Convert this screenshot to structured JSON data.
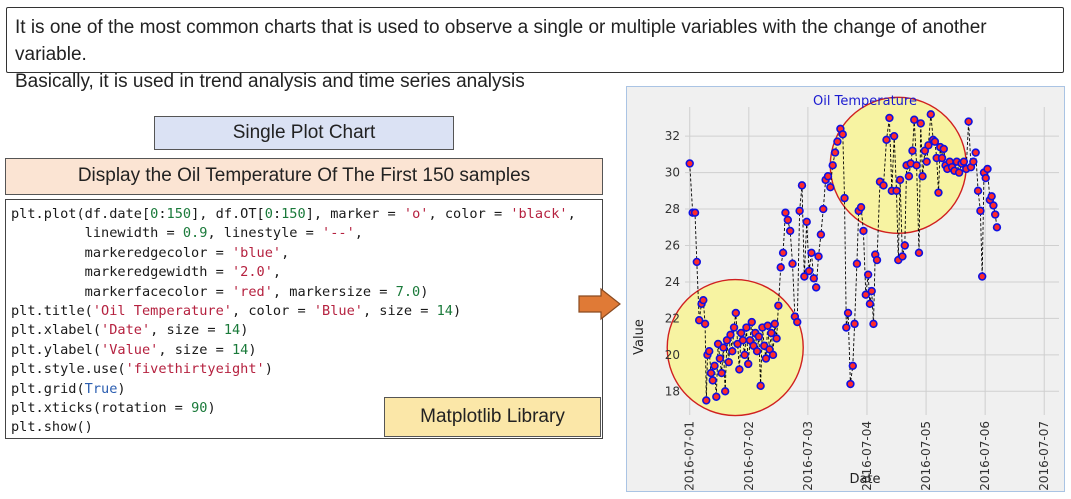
{
  "description": {
    "line1": "It is one of the most common charts that is used to observe a single or multiple variables with the change of another variable.",
    "line2": "Basically, it is used in trend analysis and time series analysis"
  },
  "labels": {
    "single_plot": "Single Plot Chart",
    "display_title": "Display the Oil Temperature Of The First 150 samples",
    "library": "Matplotlib Library"
  },
  "code_lines": [
    "plt.plot(df.date[0:150], df.OT[0:150], marker = 'o', color = 'black',",
    "         linewidth = 0.9, linestyle = '--',",
    "         markeredgecolor = 'blue',",
    "         markeredgewidth = '2.0',",
    "         markerfacecolor = 'red', markersize = 7.0)",
    "plt.title('Oil Temperature', color = 'Blue', size = 14)",
    "plt.xlabel('Date', size = 14)",
    "plt.ylabel('Value', size = 14)",
    "plt.style.use('fivethirtyeight')",
    "plt.grid(True)",
    "plt.xticks(rotation = 90)",
    "plt.show()"
  ],
  "colors": {
    "marker_face": "#ff2a2a",
    "marker_edge": "#1010e0",
    "line": "#000000",
    "title": "#1a1ad0",
    "highlight_fill": "#f7f3a2",
    "highlight_edge": "#d02020",
    "arrow": "#e07a36"
  },
  "chart_data": {
    "type": "line",
    "title": "Oil Temperature",
    "xlabel": "Date",
    "ylabel": "Value",
    "x_tick_labels": [
      "2016-07-01",
      "2016-07-02",
      "2016-07-03",
      "2016-07-04",
      "2016-07-05",
      "2016-07-06",
      "2016-07-07"
    ],
    "y_ticks": [
      18,
      20,
      22,
      24,
      26,
      28,
      30,
      32
    ],
    "ylim": [
      16.7,
      33.6
    ],
    "xlim_days": [
      -0.08,
      6.25
    ],
    "grid": true,
    "points": [
      [
        0.0,
        30.5
      ],
      [
        0.05,
        27.8
      ],
      [
        0.09,
        27.8
      ],
      [
        0.12,
        25.1
      ],
      [
        0.16,
        21.9
      ],
      [
        0.2,
        22.8
      ],
      [
        0.23,
        23.0
      ],
      [
        0.26,
        21.7
      ],
      [
        0.28,
        17.5
      ],
      [
        0.3,
        20.0
      ],
      [
        0.33,
        20.2
      ],
      [
        0.36,
        19.0
      ],
      [
        0.39,
        18.6
      ],
      [
        0.42,
        19.4
      ],
      [
        0.45,
        17.7
      ],
      [
        0.48,
        20.6
      ],
      [
        0.51,
        19.8
      ],
      [
        0.54,
        19.0
      ],
      [
        0.57,
        20.4
      ],
      [
        0.6,
        18.0
      ],
      [
        0.63,
        20.8
      ],
      [
        0.66,
        19.6
      ],
      [
        0.69,
        21.1
      ],
      [
        0.72,
        20.2
      ],
      [
        0.75,
        21.5
      ],
      [
        0.78,
        22.3
      ],
      [
        0.81,
        20.6
      ],
      [
        0.84,
        19.2
      ],
      [
        0.87,
        21.2
      ],
      [
        0.9,
        20.8
      ],
      [
        0.93,
        20.0
      ],
      [
        0.96,
        21.5
      ],
      [
        0.99,
        19.5
      ],
      [
        1.02,
        20.8
      ],
      [
        1.05,
        21.8
      ],
      [
        1.08,
        20.5
      ],
      [
        1.11,
        21.2
      ],
      [
        1.14,
        20.2
      ],
      [
        1.17,
        21.0
      ],
      [
        1.2,
        18.3
      ],
      [
        1.23,
        21.5
      ],
      [
        1.26,
        20.5
      ],
      [
        1.29,
        19.8
      ],
      [
        1.32,
        21.6
      ],
      [
        1.35,
        20.3
      ],
      [
        1.38,
        21.2
      ],
      [
        1.41,
        20.0
      ],
      [
        1.44,
        21.7
      ],
      [
        1.47,
        20.9
      ],
      [
        1.5,
        22.7
      ],
      [
        1.54,
        24.8
      ],
      [
        1.58,
        25.6
      ],
      [
        1.62,
        27.8
      ],
      [
        1.66,
        27.4
      ],
      [
        1.7,
        26.8
      ],
      [
        1.74,
        25.0
      ],
      [
        1.78,
        22.1
      ],
      [
        1.82,
        21.8
      ],
      [
        1.86,
        27.9
      ],
      [
        1.9,
        29.3
      ],
      [
        1.94,
        24.3
      ],
      [
        1.98,
        27.3
      ],
      [
        2.02,
        24.6
      ],
      [
        2.06,
        25.6
      ],
      [
        2.1,
        24.2
      ],
      [
        2.14,
        23.7
      ],
      [
        2.18,
        25.4
      ],
      [
        2.22,
        26.6
      ],
      [
        2.26,
        28.0
      ],
      [
        2.3,
        29.6
      ],
      [
        2.34,
        29.8
      ],
      [
        2.38,
        29.2
      ],
      [
        2.42,
        30.4
      ],
      [
        2.46,
        31.1
      ],
      [
        2.5,
        31.7
      ],
      [
        2.55,
        32.4
      ],
      [
        2.59,
        32.1
      ],
      [
        2.62,
        28.6
      ],
      [
        2.65,
        21.5
      ],
      [
        2.68,
        22.3
      ],
      [
        2.72,
        18.4
      ],
      [
        2.76,
        19.4
      ],
      [
        2.79,
        21.7
      ],
      [
        2.83,
        25.0
      ],
      [
        2.86,
        27.9
      ],
      [
        2.9,
        28.1
      ],
      [
        2.94,
        26.8
      ],
      [
        2.98,
        23.3
      ],
      [
        3.02,
        24.4
      ],
      [
        3.05,
        22.8
      ],
      [
        3.08,
        23.5
      ],
      [
        3.11,
        21.7
      ],
      [
        3.14,
        25.5
      ],
      [
        3.17,
        25.2
      ],
      [
        3.22,
        29.5
      ],
      [
        3.28,
        29.3
      ],
      [
        3.33,
        31.8
      ],
      [
        3.38,
        33.0
      ],
      [
        3.42,
        29.0
      ],
      [
        3.46,
        32.0
      ],
      [
        3.5,
        29.0
      ],
      [
        3.53,
        25.2
      ],
      [
        3.56,
        29.6
      ],
      [
        3.6,
        25.4
      ],
      [
        3.64,
        26.0
      ],
      [
        3.67,
        30.4
      ],
      [
        3.71,
        29.8
      ],
      [
        3.74,
        30.5
      ],
      [
        3.77,
        31.2
      ],
      [
        3.8,
        32.9
      ],
      [
        3.84,
        30.4
      ],
      [
        3.88,
        25.6
      ],
      [
        3.91,
        32.7
      ],
      [
        3.94,
        29.8
      ],
      [
        3.98,
        31.2
      ],
      [
        4.01,
        30.6
      ],
      [
        4.04,
        31.5
      ],
      [
        4.08,
        33.2
      ],
      [
        4.12,
        31.8
      ],
      [
        4.15,
        31.7
      ],
      [
        4.18,
        30.8
      ],
      [
        4.21,
        28.9
      ],
      [
        4.24,
        31.4
      ],
      [
        4.27,
        30.8
      ],
      [
        4.3,
        31.3
      ],
      [
        4.33,
        30.4
      ],
      [
        4.36,
        30.2
      ],
      [
        4.4,
        30.6
      ],
      [
        4.44,
        30.3
      ],
      [
        4.48,
        30.1
      ],
      [
        4.52,
        30.6
      ],
      [
        4.56,
        30.0
      ],
      [
        4.6,
        30.5
      ],
      [
        4.64,
        30.6
      ],
      [
        4.68,
        30.2
      ],
      [
        4.72,
        32.8
      ],
      [
        4.76,
        30.3
      ],
      [
        4.8,
        30.6
      ],
      [
        4.84,
        31.1
      ],
      [
        4.88,
        29.0
      ],
      [
        4.92,
        27.9
      ],
      [
        4.95,
        24.3
      ],
      [
        4.98,
        30.0
      ],
      [
        5.01,
        29.7
      ],
      [
        5.04,
        30.2
      ],
      [
        5.08,
        28.5
      ],
      [
        5.11,
        28.7
      ],
      [
        5.14,
        28.2
      ],
      [
        5.17,
        27.7
      ],
      [
        5.2,
        27.0
      ]
    ],
    "highlights": [
      {
        "label": "low-cluster",
        "cx_day": 0.77,
        "cy_value": 20.4
      },
      {
        "label": "high-cluster",
        "cx_day": 3.53,
        "cy_value": 30.4
      }
    ]
  }
}
